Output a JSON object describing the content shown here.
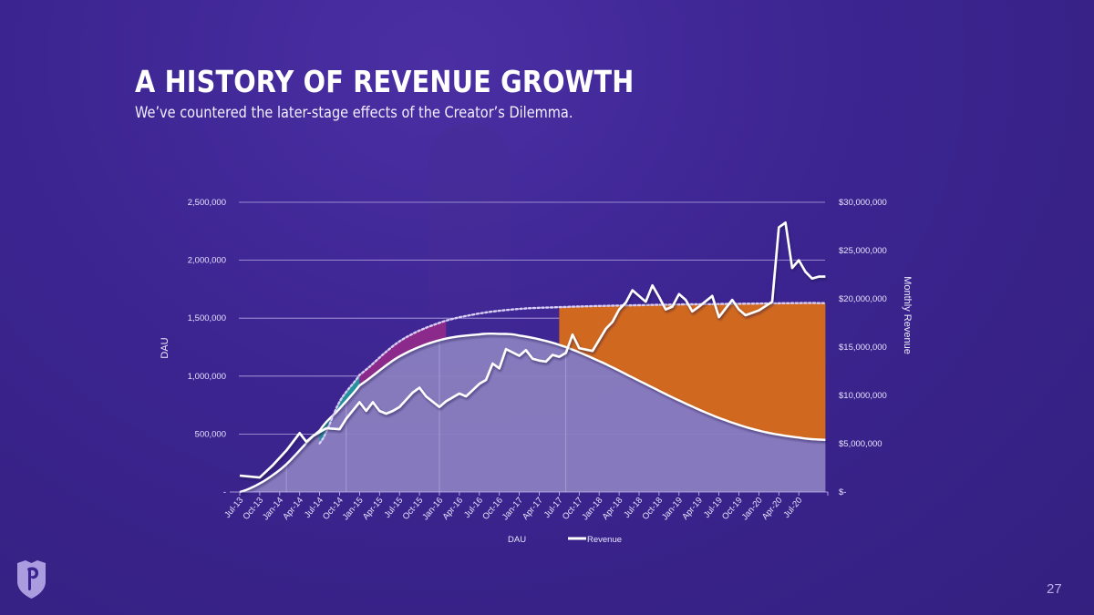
{
  "slide": {
    "title": "A HISTORY OF REVENUE GROWTH",
    "subtitle": "We’ve countered the later-stage effects of the Creator’s Dilemma.",
    "page_number": "27",
    "logo_icon": "shield-p-logo-icon"
  },
  "colors": {
    "background": "#3b238f",
    "dau_fill": "#8a7ec0",
    "teal_band": "#23909e",
    "magenta_band": "#8b2a8a",
    "orange_band": "#d0681f",
    "revenue_line": "#ffffff",
    "potential_dotted": "#d8cdf5"
  },
  "chart_data": {
    "type": "area",
    "title": "",
    "xlabel": "",
    "ylabel_left": "DAU",
    "ylabel_right": "Monthly Revenue",
    "left_axis": {
      "range": [
        0,
        2500000
      ],
      "ticks": [
        {
          "value": 0,
          "label": "-"
        },
        {
          "value": 500000,
          "label": "500,000"
        },
        {
          "value": 1000000,
          "label": "1,000,000"
        },
        {
          "value": 1500000,
          "label": "1,500,000"
        },
        {
          "value": 2000000,
          "label": "2,000,000"
        },
        {
          "value": 2500000,
          "label": "2,500,000"
        }
      ]
    },
    "right_axis": {
      "range": [
        0,
        30000000
      ],
      "ticks": [
        {
          "value": 0,
          "label": "$-"
        },
        {
          "value": 5000000,
          "label": "$5,000,000"
        },
        {
          "value": 10000000,
          "label": "$10,000,000"
        },
        {
          "value": 15000000,
          "label": "$15,000,000"
        },
        {
          "value": 20000000,
          "label": "$20,000,000"
        },
        {
          "value": 25000000,
          "label": "$25,000,000"
        },
        {
          "value": 30000000,
          "label": "$30,000,000"
        }
      ]
    },
    "x_tick_labels": [
      "Jul-13",
      "Oct-13",
      "Jan-14",
      "Apr-14",
      "Jul-14",
      "Oct-14",
      "Jan-15",
      "Apr-15",
      "Jul-15",
      "Oct-15",
      "Jan-16",
      "Apr-16",
      "Jul-16",
      "Oct-16",
      "Jan-17",
      "Apr-17",
      "Jul-17",
      "Oct-17",
      "Jan-18",
      "Apr-18",
      "Jul-18",
      "Oct-18",
      "Jan-19",
      "Apr-19",
      "Jul-19",
      "Oct-19",
      "Jan-20",
      "Apr-20",
      "Jul-20"
    ],
    "grid": true,
    "legend": {
      "position": "bottom",
      "entries": [
        {
          "label": "DAU",
          "style": "area"
        },
        {
          "label": "Revenue",
          "style": "line"
        }
      ]
    },
    "dau_curve": {
      "name": "DAU",
      "description": "smooth bell-shaped DAU curve",
      "x_months_from_jul13": [
        0,
        6,
        12,
        15,
        18,
        24,
        30,
        36,
        39,
        42,
        48,
        54,
        60,
        66,
        72,
        78,
        84,
        88
      ],
      "values": [
        0,
        190000,
        530000,
        720000,
        920000,
        1170000,
        1310000,
        1360000,
        1365000,
        1350000,
        1270000,
        1130000,
        960000,
        790000,
        640000,
        530000,
        470000,
        450000
      ]
    },
    "potential_curve": {
      "name": "Potential DAU (dotted)",
      "x_months_from_jul13": [
        12,
        15,
        18,
        24,
        30,
        36,
        42,
        48,
        54,
        60,
        66,
        72,
        78,
        84,
        88
      ],
      "values": [
        420000,
        780000,
        1010000,
        1300000,
        1460000,
        1540000,
        1580000,
        1595000,
        1605000,
        1612000,
        1618000,
        1622000,
        1626000,
        1630000,
        1630000
      ]
    },
    "bands": [
      {
        "name": "teal-band",
        "from_month": 12,
        "to_month": 18
      },
      {
        "name": "magenta-band",
        "from_month": 18,
        "to_month": 31
      },
      {
        "name": "orange-band",
        "from_month": 48,
        "to_month": 88
      }
    ],
    "vertical_markers_months": [
      7,
      16,
      30,
      49
    ],
    "revenue_series": {
      "name": "Revenue",
      "x_months_from_jul13": [
        0,
        3,
        5,
        7,
        9,
        10,
        11,
        12,
        13,
        15,
        16,
        18,
        19,
        20,
        21,
        22,
        23,
        24,
        26,
        27,
        28,
        30,
        31,
        32,
        33,
        34,
        36,
        37,
        38,
        39,
        40,
        42,
        43,
        44,
        45,
        46,
        47,
        48,
        49,
        50,
        51,
        53,
        55,
        56,
        57,
        58,
        59,
        61,
        62,
        63,
        64,
        65,
        66,
        67,
        68,
        69,
        71,
        72,
        74,
        75,
        76,
        78,
        80,
        81,
        82,
        83,
        84,
        85,
        86,
        87,
        88
      ],
      "values": [
        1.7,
        1.5,
        2.8,
        4.3,
        6.1,
        5.2,
        5.8,
        6.2,
        6.6,
        6.5,
        7.6,
        9.3,
        8.4,
        9.3,
        8.4,
        8.1,
        8.4,
        8.8,
        10.3,
        10.8,
        9.9,
        8.8,
        9.4,
        9.8,
        10.2,
        9.9,
        11.2,
        11.6,
        13.3,
        12.8,
        14.8,
        14.1,
        14.7,
        13.8,
        13.6,
        13.5,
        14.2,
        14.0,
        14.4,
        16.3,
        14.9,
        14.6,
        16.9,
        17.6,
        18.9,
        19.6,
        20.9,
        19.7,
        21.4,
        20.2,
        18.9,
        19.2,
        20.5,
        19.9,
        18.7,
        19.2,
        20.3,
        18.1,
        19.9,
        18.9,
        18.3,
        18.8,
        19.7,
        27.4,
        27.9,
        23.2,
        24.0,
        22.8,
        22.1,
        22.3,
        22.3
      ]
    }
  }
}
